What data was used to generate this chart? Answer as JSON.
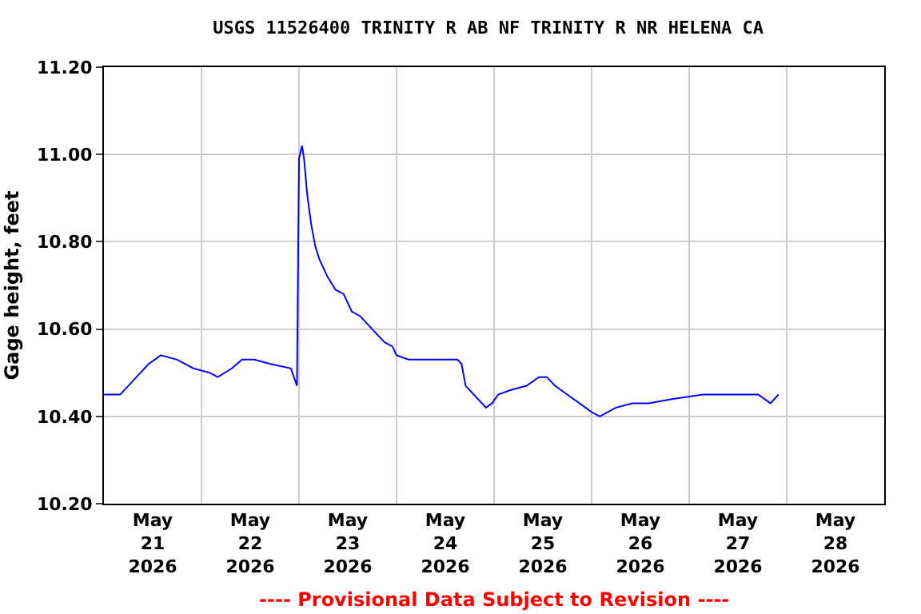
{
  "chart_data": {
    "type": "line",
    "title": "USGS 11526400 TRINITY R AB NF TRINITY R NR HELENA CA",
    "ylabel": "Gage height, feet",
    "annotations": [
      "---- Provisional Data Subject to Revision ----"
    ],
    "x": [
      "2026-05-21T00:00",
      "2026-05-21T04:00",
      "2026-05-21T06:00",
      "2026-05-21T08:00",
      "2026-05-21T11:00",
      "2026-05-21T14:00",
      "2026-05-21T18:00",
      "2026-05-21T22:00",
      "2026-05-22T02:00",
      "2026-05-22T04:00",
      "2026-05-22T07:30",
      "2026-05-22T10:00",
      "2026-05-22T13:00",
      "2026-05-22T17:00",
      "2026-05-22T22:00",
      "2026-05-22T23:30",
      "2026-05-23T00:00",
      "2026-05-23T00:45",
      "2026-05-23T01:15",
      "2026-05-23T02:00",
      "2026-05-23T03:00",
      "2026-05-23T04:00",
      "2026-05-23T05:00",
      "2026-05-23T07:00",
      "2026-05-23T09:00",
      "2026-05-23T11:00",
      "2026-05-23T13:00",
      "2026-05-23T15:00",
      "2026-05-23T17:00",
      "2026-05-23T19:00",
      "2026-05-23T21:00",
      "2026-05-23T23:00",
      "2026-05-24T00:00",
      "2026-05-24T03:00",
      "2026-05-24T05:00",
      "2026-05-24T09:00",
      "2026-05-24T13:00",
      "2026-05-24T15:00",
      "2026-05-24T16:00",
      "2026-05-24T17:00",
      "2026-05-24T19:00",
      "2026-05-24T22:00",
      "2026-05-24T23:30",
      "2026-05-25T01:00",
      "2026-05-25T04:00",
      "2026-05-25T08:00",
      "2026-05-25T11:00",
      "2026-05-25T13:00",
      "2026-05-25T15:00",
      "2026-05-25T18:00",
      "2026-05-25T21:00",
      "2026-05-26T00:00",
      "2026-05-26T02:00",
      "2026-05-26T06:00",
      "2026-05-26T10:00",
      "2026-05-26T14:00",
      "2026-05-26T20:00",
      "2026-05-27T03:30",
      "2026-05-27T11:30",
      "2026-05-27T17:00",
      "2026-05-27T20:00",
      "2026-05-27T22:00"
    ],
    "series": [
      {
        "color": "#0000ff",
        "values": [
          10.45,
          10.45,
          10.47,
          10.49,
          10.52,
          10.54,
          10.53,
          10.51,
          10.5,
          10.49,
          10.51,
          10.53,
          10.53,
          10.52,
          10.51,
          10.47,
          10.99,
          11.02,
          10.99,
          10.91,
          10.84,
          10.79,
          10.76,
          10.72,
          10.69,
          10.68,
          10.64,
          10.63,
          10.61,
          10.59,
          10.57,
          10.56,
          10.54,
          10.53,
          10.53,
          10.53,
          10.53,
          10.53,
          10.52,
          10.47,
          10.45,
          10.42,
          10.43,
          10.45,
          10.46,
          10.47,
          10.49,
          10.49,
          10.47,
          10.45,
          10.43,
          10.41,
          10.4,
          10.42,
          10.43,
          10.43,
          10.44,
          10.45,
          10.45,
          10.45,
          10.43,
          10.45
        ]
      }
    ],
    "xlim": [
      "2026-05-21T00:00",
      "2026-05-29T00:00"
    ],
    "xticks": [
      {
        "value": "2026-05-21T12:00",
        "label": "May\n21\n2026"
      },
      {
        "value": "2026-05-22T12:00",
        "label": "May\n22\n2026"
      },
      {
        "value": "2026-05-23T12:00",
        "label": "May\n23\n2026"
      },
      {
        "value": "2026-05-24T12:00",
        "label": "May\n24\n2026"
      },
      {
        "value": "2026-05-25T12:00",
        "label": "May\n25\n2026"
      },
      {
        "value": "2026-05-26T12:00",
        "label": "May\n26\n2026"
      },
      {
        "value": "2026-05-27T12:00",
        "label": "May\n27\n2026"
      },
      {
        "value": "2026-05-28T12:00",
        "label": "May\n28\n2026"
      },
      {
        "value": "2026-05-22T00:00",
        "label": null
      },
      {
        "value": "2026-05-23T00:00",
        "label": null
      },
      {
        "value": "2026-05-24T00:00",
        "label": null
      },
      {
        "value": "2026-05-25T00:00",
        "label": null
      },
      {
        "value": "2026-05-26T00:00",
        "label": null
      },
      {
        "value": "2026-05-27T00:00",
        "label": null
      },
      {
        "value": "2026-05-28T00:00",
        "label": null
      }
    ],
    "ylim": [
      10.2,
      11.2
    ],
    "yticks": [
      {
        "value": 10.2,
        "label": "10.20"
      },
      {
        "value": 10.4,
        "label": "10.40"
      },
      {
        "value": 10.6,
        "label": "10.60"
      },
      {
        "value": 10.8,
        "label": "10.80"
      },
      {
        "value": 11.0,
        "label": "11.00"
      },
      {
        "value": 11.2,
        "label": "11.20"
      }
    ],
    "grid": true
  }
}
